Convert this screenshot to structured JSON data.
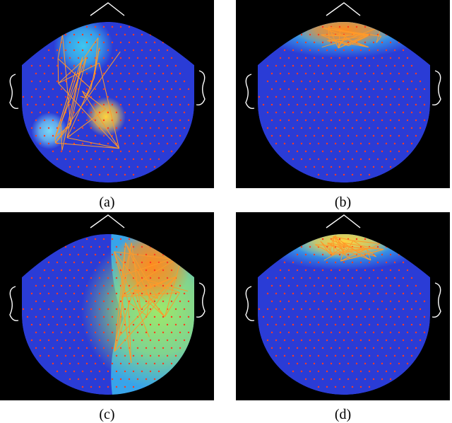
{
  "figure": {
    "panels": [
      {
        "id": "a",
        "caption": "(a)",
        "activation": "left-frontal",
        "hot_color": "#ffd23c"
      },
      {
        "id": "b",
        "caption": "(b)",
        "activation": "frontal-pole",
        "hot_color": "#ff8a1e"
      },
      {
        "id": "c",
        "caption": "(c)",
        "activation": "right-hemisphere",
        "hot_color": "#ff8a1e"
      },
      {
        "id": "d",
        "caption": "(d)",
        "activation": "frontal-pole",
        "hot_color": "#ffd23c"
      }
    ],
    "colors": {
      "background": "#000000",
      "scalp_low": "#2a3cd6",
      "scalp_mid": "#3ec7f0",
      "electrode": "#ff3b1f",
      "connection": "#ff9a2a",
      "outline": "#ffffff"
    }
  }
}
